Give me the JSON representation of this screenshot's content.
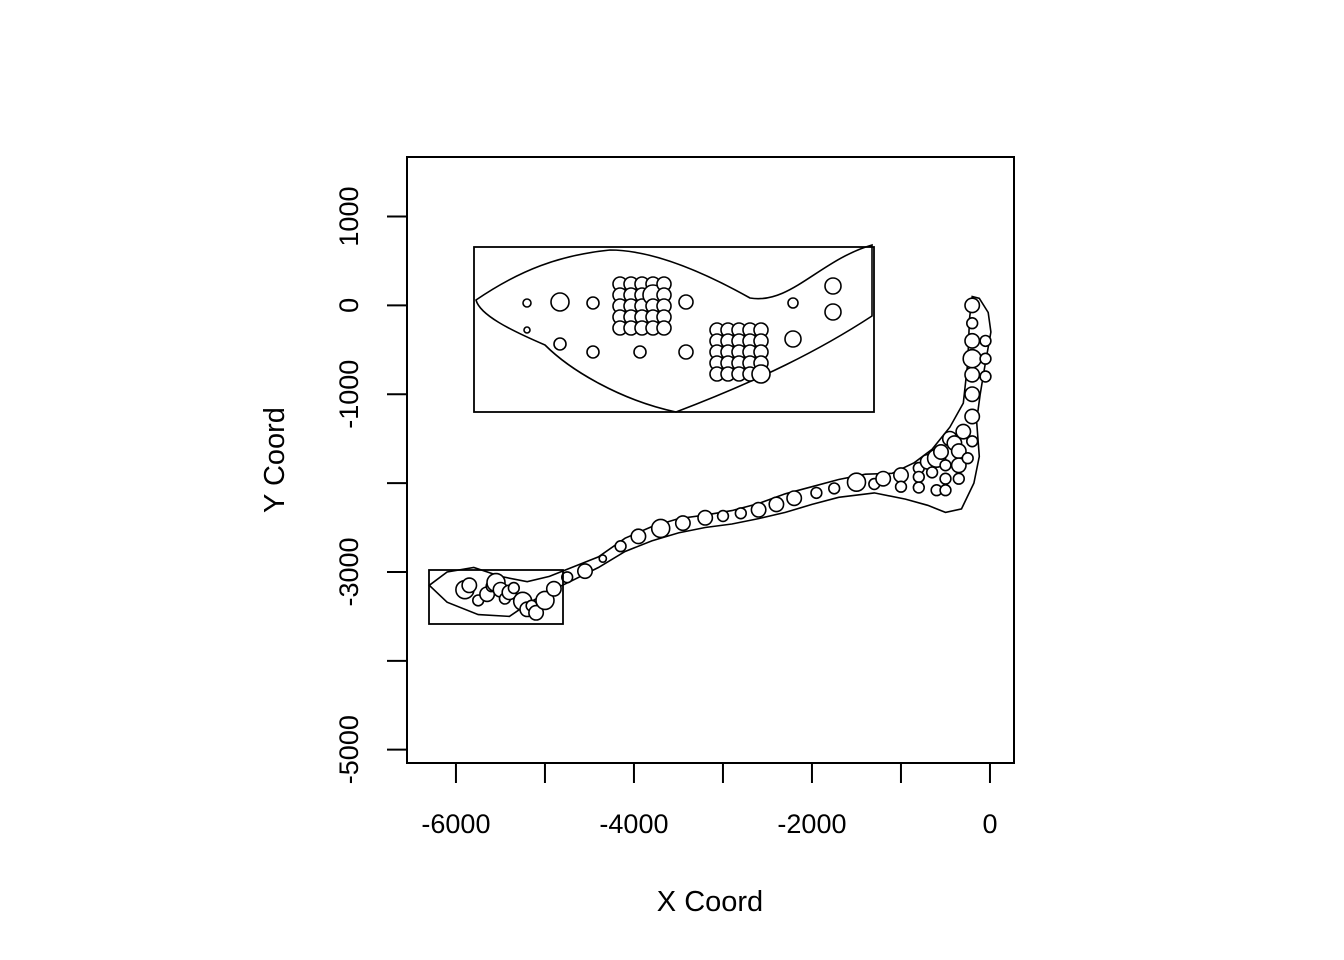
{
  "chart_data": {
    "type": "scatter",
    "title": "",
    "xlabel": "X Coord",
    "ylabel": "Y Coord",
    "xlim": [
      -6550,
      270
    ],
    "ylim": [
      -5150,
      1670
    ],
    "xticks": [
      -6000,
      -5000,
      -4000,
      -3000,
      -2000,
      -1000,
      0
    ],
    "xtick_labels": [
      "-6000",
      "",
      "-4000",
      "",
      "-2000",
      "",
      "0"
    ],
    "yticks": [
      1000,
      0,
      -1000,
      -2000,
      -3000,
      -4000,
      -5000
    ],
    "ytick_labels": [
      "1000",
      "0",
      "-1000",
      "",
      "-3000",
      "",
      "-5000"
    ],
    "grid": false,
    "legend": "none",
    "point_style": "open circles sized by value",
    "outline": [
      [
        -6300,
        -3150
      ],
      [
        -6100,
        -3000
      ],
      [
        -5800,
        -2950
      ],
      [
        -5500,
        -3050
      ],
      [
        -5200,
        -3110
      ],
      [
        -4950,
        -3050
      ],
      [
        -4700,
        -2950
      ],
      [
        -4400,
        -2830
      ],
      [
        -4100,
        -2620
      ],
      [
        -3800,
        -2490
      ],
      [
        -3500,
        -2400
      ],
      [
        -3200,
        -2360
      ],
      [
        -2900,
        -2310
      ],
      [
        -2600,
        -2230
      ],
      [
        -2300,
        -2120
      ],
      [
        -2000,
        -2040
      ],
      [
        -1700,
        -1960
      ],
      [
        -1400,
        -1900
      ],
      [
        -1100,
        -1890
      ],
      [
        -850,
        -1770
      ],
      [
        -650,
        -1620
      ],
      [
        -450,
        -1370
      ],
      [
        -300,
        -1100
      ],
      [
        -250,
        -650
      ],
      [
        -230,
        -150
      ],
      [
        -200,
        100
      ],
      [
        -120,
        80
      ],
      [
        -20,
        -80
      ],
      [
        10,
        -300
      ],
      [
        -60,
        -700
      ],
      [
        -110,
        -1000
      ],
      [
        -150,
        -1300
      ],
      [
        -120,
        -1700
      ],
      [
        -180,
        -2000
      ],
      [
        -320,
        -2290
      ],
      [
        -500,
        -2330
      ],
      [
        -700,
        -2250
      ],
      [
        -950,
        -2180
      ],
      [
        -1300,
        -2110
      ],
      [
        -1700,
        -2160
      ],
      [
        -2000,
        -2240
      ],
      [
        -2300,
        -2330
      ],
      [
        -2600,
        -2400
      ],
      [
        -2900,
        -2460
      ],
      [
        -3200,
        -2500
      ],
      [
        -3500,
        -2560
      ],
      [
        -3800,
        -2650
      ],
      [
        -4100,
        -2770
      ],
      [
        -4400,
        -2950
      ],
      [
        -4700,
        -3100
      ],
      [
        -4950,
        -3220
      ],
      [
        -5150,
        -3330
      ],
      [
        -5400,
        -3500
      ],
      [
        -5750,
        -3480
      ],
      [
        -6100,
        -3340
      ],
      [
        -6300,
        -3150
      ]
    ],
    "points": [
      {
        "x": -5900,
        "y": -3200,
        "size": 2.5
      },
      {
        "x": -5850,
        "y": -3150,
        "size": 2.0
      },
      {
        "x": -5750,
        "y": -3320,
        "size": 1.5
      },
      {
        "x": -5650,
        "y": -3250,
        "size": 2.0
      },
      {
        "x": -5600,
        "y": -3160,
        "size": 1.5
      },
      {
        "x": -5550,
        "y": -3120,
        "size": 2.5
      },
      {
        "x": -5500,
        "y": -3200,
        "size": 2.0
      },
      {
        "x": -5450,
        "y": -3300,
        "size": 1.5
      },
      {
        "x": -5400,
        "y": -3230,
        "size": 2.0
      },
      {
        "x": -5350,
        "y": -3180,
        "size": 1.5
      },
      {
        "x": -5250,
        "y": -3330,
        "size": 2.5
      },
      {
        "x": -5200,
        "y": -3420,
        "size": 2.0
      },
      {
        "x": -5150,
        "y": -3380,
        "size": 1.5
      },
      {
        "x": -5100,
        "y": -3460,
        "size": 2.0
      },
      {
        "x": -5000,
        "y": -3320,
        "size": 2.5
      },
      {
        "x": -4900,
        "y": -3190,
        "size": 2.0
      },
      {
        "x": -4750,
        "y": -3060,
        "size": 1.5
      },
      {
        "x": -4550,
        "y": -2990,
        "size": 2.0
      },
      {
        "x": -4350,
        "y": -2850,
        "size": 1.0
      },
      {
        "x": -4150,
        "y": -2710,
        "size": 1.5
      },
      {
        "x": -3950,
        "y": -2600,
        "size": 2.0
      },
      {
        "x": -3700,
        "y": -2510,
        "size": 2.5
      },
      {
        "x": -3450,
        "y": -2450,
        "size": 2.0
      },
      {
        "x": -3200,
        "y": -2390,
        "size": 2.0
      },
      {
        "x": -3000,
        "y": -2370,
        "size": 1.5
      },
      {
        "x": -2800,
        "y": -2340,
        "size": 1.5
      },
      {
        "x": -2600,
        "y": -2300,
        "size": 2.0
      },
      {
        "x": -2400,
        "y": -2240,
        "size": 2.0
      },
      {
        "x": -2200,
        "y": -2170,
        "size": 2.0
      },
      {
        "x": -1950,
        "y": -2110,
        "size": 1.5
      },
      {
        "x": -1750,
        "y": -2060,
        "size": 1.5
      },
      {
        "x": -1500,
        "y": -1990,
        "size": 2.5
      },
      {
        "x": -1300,
        "y": -2010,
        "size": 1.5
      },
      {
        "x": -1200,
        "y": -1950,
        "size": 2.0
      },
      {
        "x": -1000,
        "y": -1910,
        "size": 2.0
      },
      {
        "x": -1000,
        "y": -2040,
        "size": 1.5
      },
      {
        "x": -800,
        "y": -1830,
        "size": 1.5
      },
      {
        "x": -800,
        "y": -1930,
        "size": 1.5
      },
      {
        "x": -800,
        "y": -2050,
        "size": 1.5
      },
      {
        "x": -700,
        "y": -1760,
        "size": 2.0
      },
      {
        "x": -650,
        "y": -1880,
        "size": 1.5
      },
      {
        "x": -600,
        "y": -1720,
        "size": 2.5
      },
      {
        "x": -600,
        "y": -2080,
        "size": 1.5
      },
      {
        "x": -550,
        "y": -1650,
        "size": 2.0
      },
      {
        "x": -500,
        "y": -1800,
        "size": 1.5
      },
      {
        "x": -500,
        "y": -1950,
        "size": 1.5
      },
      {
        "x": -500,
        "y": -2080,
        "size": 1.5
      },
      {
        "x": -450,
        "y": -1500,
        "size": 2.0
      },
      {
        "x": -400,
        "y": -1550,
        "size": 2.0
      },
      {
        "x": -350,
        "y": -1640,
        "size": 2.0
      },
      {
        "x": -350,
        "y": -1800,
        "size": 2.0
      },
      {
        "x": -350,
        "y": -1950,
        "size": 1.5
      },
      {
        "x": -300,
        "y": -1420,
        "size": 2.0
      },
      {
        "x": -250,
        "y": -1720,
        "size": 1.5
      },
      {
        "x": -200,
        "y": -1530,
        "size": 1.5
      },
      {
        "x": -200,
        "y": -1250,
        "size": 2.0
      },
      {
        "x": -200,
        "y": -1000,
        "size": 2.0
      },
      {
        "x": -200,
        "y": -780,
        "size": 2.0
      },
      {
        "x": -200,
        "y": -600,
        "size": 2.5
      },
      {
        "x": -200,
        "y": -400,
        "size": 2.0
      },
      {
        "x": -200,
        "y": -200,
        "size": 1.5
      },
      {
        "x": -200,
        "y": 0,
        "size": 2.0
      },
      {
        "x": -50,
        "y": -400,
        "size": 1.5
      },
      {
        "x": -50,
        "y": -600,
        "size": 1.5
      },
      {
        "x": -50,
        "y": -800,
        "size": 1.5
      }
    ]
  }
}
